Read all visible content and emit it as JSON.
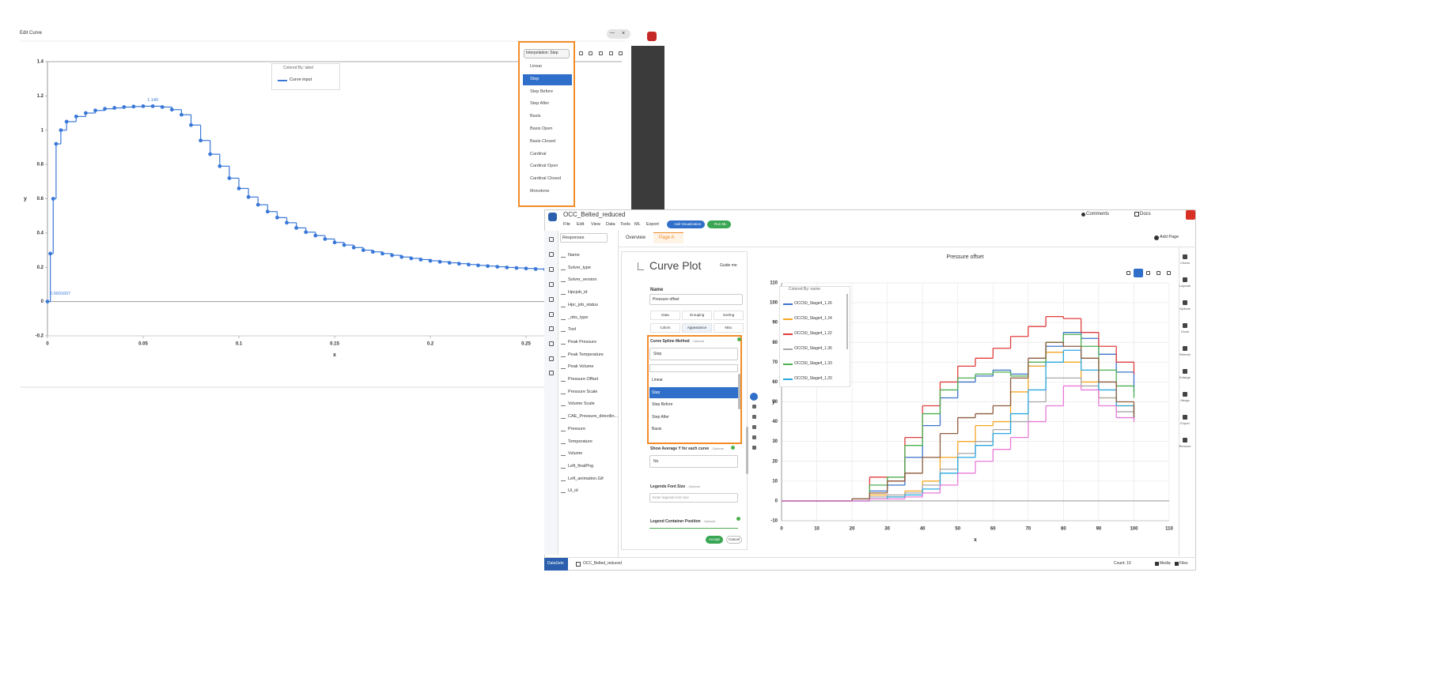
{
  "edit_curve": {
    "title": "Edit Curve",
    "window_buttons": [
      "—",
      "×"
    ],
    "interpolation_button": "Interpolation: Step",
    "interpolation_options": [
      "Linear",
      "Step",
      "Step Before",
      "Step After",
      "Basis",
      "Basis Open",
      "Basis Closed",
      "Cardinal",
      "Cardinal Open",
      "Cardinal Closed",
      "Monotone"
    ],
    "selected": 1,
    "chart": {
      "type": "line",
      "legend_title": "Colored By: label",
      "xlabel": "x",
      "ylabel": "y",
      "markers": true,
      "grid": false,
      "step": true,
      "x": [
        0,
        0.0015,
        0.003,
        0.0045,
        0.007,
        0.01,
        0.015,
        0.02,
        0.025,
        0.03,
        0.035,
        0.04,
        0.045,
        0.05,
        0.055,
        0.06,
        0.065,
        0.07,
        0.075,
        0.08,
        0.085,
        0.09,
        0.095,
        0.1,
        0.105,
        0.11,
        0.115,
        0.12,
        0.125,
        0.13,
        0.135,
        0.14,
        0.145,
        0.15,
        0.155,
        0.16,
        0.165,
        0.17,
        0.175,
        0.18,
        0.185,
        0.19,
        0.195,
        0.2,
        0.205,
        0.21,
        0.215,
        0.22,
        0.225,
        0.23,
        0.235,
        0.24,
        0.245,
        0.25,
        0.255,
        0.26
      ],
      "series": [
        {
          "name": "Curve input",
          "color": "#3a78d8",
          "values": [
            0.0001607,
            0.28,
            0.6,
            0.92,
            1.0,
            1.05,
            1.08,
            1.1,
            1.115,
            1.125,
            1.13,
            1.135,
            1.138,
            1.14,
            1.14,
            1.135,
            1.12,
            1.09,
            1.03,
            0.94,
            0.86,
            0.79,
            0.72,
            0.66,
            0.61,
            0.565,
            0.525,
            0.49,
            0.46,
            0.43,
            0.405,
            0.385,
            0.365,
            0.345,
            0.33,
            0.315,
            0.3,
            0.29,
            0.28,
            0.27,
            0.26,
            0.252,
            0.245,
            0.238,
            0.232,
            0.226,
            0.221,
            0.216,
            0.211,
            0.207,
            0.203,
            0.199,
            0.196,
            0.193,
            0.19,
            0.187
          ]
        }
      ],
      "annotations": [
        {
          "x": 0.055,
          "y": 1.14,
          "label": "1.140"
        },
        {
          "x": 0,
          "y": 0.0001607,
          "label": "0.0001607"
        }
      ],
      "xlim": [
        0,
        0.3
      ],
      "ylim": [
        -0.2,
        1.4
      ],
      "xticks": [
        0,
        0.05,
        0.1,
        0.15,
        0.2,
        0.25
      ],
      "yticks": [
        -0.2,
        0,
        0.2,
        0.4,
        0.6,
        0.8,
        1,
        1.2,
        1.4
      ]
    }
  },
  "app": {
    "title": "OCC_Belted_reduced",
    "menu": [
      "File",
      "Edit",
      "View",
      "Data",
      "Tools",
      "ML",
      "Export"
    ],
    "add_visualization": "Add Visualization",
    "run_ml": "Run ML",
    "comments": "Comments",
    "docs": "Docs",
    "tabs": [
      "Overview",
      "Page A"
    ],
    "add_page": "Add Page",
    "sidebar_title": "Responses",
    "sidebar_items": [
      "Name",
      "Solver_type",
      "Solver_version",
      "Hpcjob_id",
      "Hpc_job_status",
      "_obs_type",
      "Tool",
      "Peak Pressure",
      "Peak Temperature",
      "Peak Volume",
      "Pressure Offset",
      "Pressure Scale",
      "Volume Scale",
      "CAE_Pressure_directlin...",
      "Pressure",
      "Temperature",
      "Volume",
      "Left_finalPng",
      "Left_animation.Gif",
      "Ui_id"
    ],
    "config": {
      "title": "Curve Plot",
      "guide": "Guide me",
      "name_label": "Name",
      "name_value": "Pressure offset",
      "tabs": [
        "Data",
        "Grouping",
        "Sorting",
        "Colors",
        "Appearance",
        "Misc"
      ],
      "fields": [
        {
          "label": "Curve Spline Method",
          "hint": "- Optional",
          "value": "Step"
        },
        {
          "label": "Show Average Y for each curve",
          "hint": "- Optional",
          "value": "No"
        },
        {
          "label": "Legends Font Size",
          "hint": "- Optional",
          "placeholder": "Enter legends font size"
        },
        {
          "label": "Legend Container Position",
          "hint": "- Optional"
        }
      ],
      "spline_options": [
        "Linear",
        "Step",
        "Step Before",
        "Step After",
        "Basis"
      ],
      "spline_selected": 1,
      "accept": "Accept",
      "cancel": "Cancel"
    },
    "chart": {
      "type": "line",
      "title": "Pressure offset",
      "legend_title": "Colored By: name",
      "xlabel": "x",
      "ylabel": "y",
      "markers": false,
      "grid": true,
      "step": true,
      "x": [
        0,
        5,
        10,
        15,
        20,
        25,
        30,
        35,
        40,
        45,
        50,
        55,
        60,
        65,
        70,
        75,
        80,
        85,
        90,
        95,
        100
      ],
      "series": [
        {
          "name": "OCC50_Stage4_1.26",
          "color": "#3b73c9",
          "values": [
            0,
            0,
            0,
            0,
            1,
            5,
            8,
            22,
            38,
            52,
            60,
            63,
            66,
            64,
            68,
            78,
            85,
            82,
            74,
            65,
            55
          ]
        },
        {
          "name": "OCC50_Stage4_1.24",
          "color": "#f5a623",
          "values": [
            0,
            0,
            0,
            0,
            1,
            3,
            2,
            5,
            10,
            22,
            30,
            38,
            40,
            55,
            68,
            75,
            70,
            60,
            52,
            48,
            44
          ]
        },
        {
          "name": "OCC50_Stage4_1.22",
          "color": "#e03c3c",
          "values": [
            0,
            0,
            0,
            0,
            1,
            12,
            10,
            32,
            48,
            60,
            68,
            72,
            77,
            83,
            88,
            93,
            92,
            85,
            78,
            70,
            64
          ]
        },
        {
          "name": "OCC50_Stage4_1.36",
          "color": "#a8a8a8",
          "values": [
            0,
            0,
            0,
            0,
            0,
            2,
            3,
            4,
            8,
            16,
            24,
            30,
            36,
            40,
            50,
            62,
            62,
            58,
            52,
            45,
            40
          ]
        },
        {
          "name": "OCC50_Stage4_1.33",
          "color": "#4caf50",
          "values": [
            0,
            0,
            0,
            0,
            1,
            8,
            12,
            28,
            44,
            56,
            62,
            64,
            65,
            63,
            70,
            80,
            84,
            78,
            66,
            58,
            52
          ]
        },
        {
          "name": "OCC50_Stage4_1.20",
          "color": "#29a8e0",
          "values": [
            0,
            0,
            0,
            0,
            0,
            1,
            2,
            3,
            6,
            14,
            22,
            28,
            34,
            44,
            56,
            70,
            76,
            66,
            56,
            48,
            42
          ]
        },
        {
          "color": "#8d5a3c",
          "values": [
            0,
            0,
            0,
            0,
            1,
            4,
            10,
            14,
            22,
            34,
            42,
            44,
            48,
            62,
            72,
            80,
            78,
            72,
            60,
            50,
            42
          ]
        },
        {
          "color": "#e87ad8",
          "values": [
            0,
            0,
            0,
            0,
            0,
            1,
            1,
            2,
            4,
            8,
            14,
            20,
            26,
            32,
            40,
            48,
            58,
            56,
            48,
            42,
            40
          ]
        }
      ],
      "xlim": [
        0,
        110
      ],
      "ylim": [
        -10,
        110
      ],
      "xticks": [
        0,
        10,
        20,
        30,
        40,
        50,
        60,
        70,
        80,
        90,
        100,
        110
      ],
      "yticks": [
        -10,
        0,
        10,
        20,
        30,
        40,
        50,
        60,
        70,
        80,
        90,
        100,
        110
      ]
    },
    "tools": [
      "Charts",
      "Layouts",
      "Options",
      "Clone",
      "Refresh",
      "Enlarge",
      "Merge",
      "Export",
      "Remove"
    ],
    "footer": {
      "datasets": "DataSets",
      "dataset": "OCC_Belted_reduced",
      "count": "Count: 10",
      "media": "Media",
      "files": "Files"
    }
  }
}
